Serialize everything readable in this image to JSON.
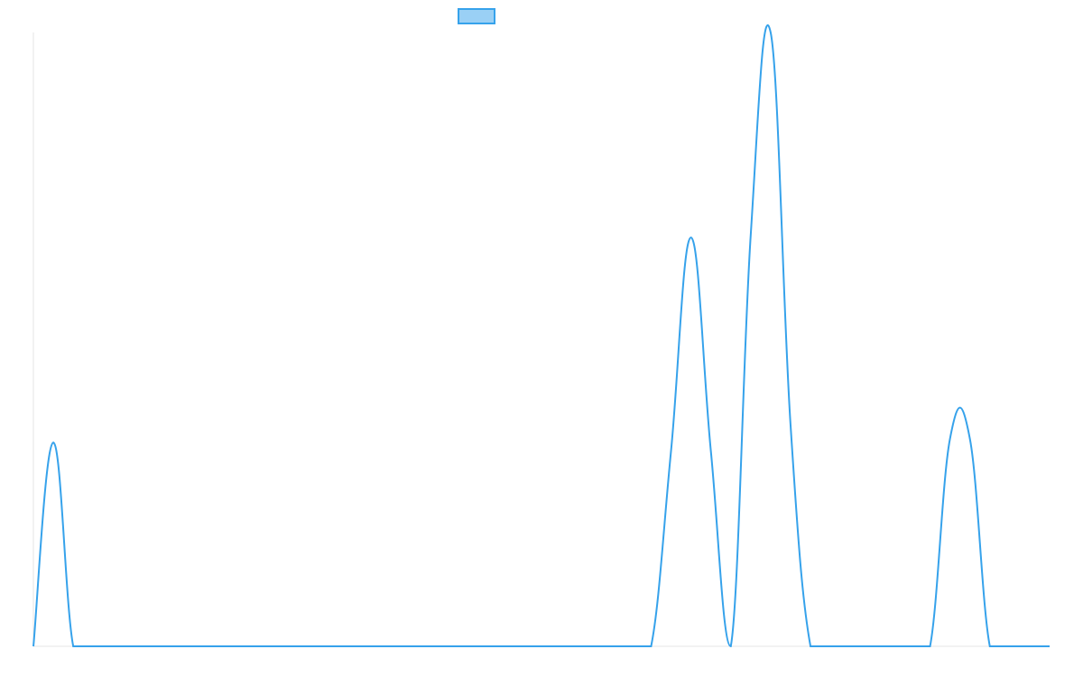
{
  "chart_data": {
    "type": "line",
    "categories": [
      null,
      null,
      null,
      null,
      null,
      null,
      null,
      null,
      null,
      null,
      null,
      null,
      null,
      null,
      null,
      null,
      null,
      null,
      null,
      null,
      null,
      null,
      null,
      null,
      null,
      null,
      null,
      null,
      null,
      null,
      null,
      null,
      null,
      null,
      null,
      null,
      null,
      null,
      null,
      null,
      null,
      null,
      null,
      null,
      null,
      null,
      null,
      null,
      null,
      null,
      null,
      null
    ],
    "series": [
      {
        "color": "#36a2eb",
        "values": [
          0,
          33.2,
          0,
          0,
          0,
          0,
          0,
          0,
          0,
          0,
          0,
          0,
          0,
          0,
          0,
          0,
          0,
          0,
          0,
          0,
          0,
          0,
          0,
          0,
          0,
          0,
          0,
          0,
          0,
          0,
          0,
          0,
          31.8,
          66.6,
          31.8,
          0,
          67,
          100,
          36,
          0,
          0,
          0,
          0,
          0,
          0,
          0,
          33.8,
          33.8,
          0,
          0,
          0,
          0
        ]
      }
    ],
    "ylim": [
      0,
      100
    ]
  }
}
